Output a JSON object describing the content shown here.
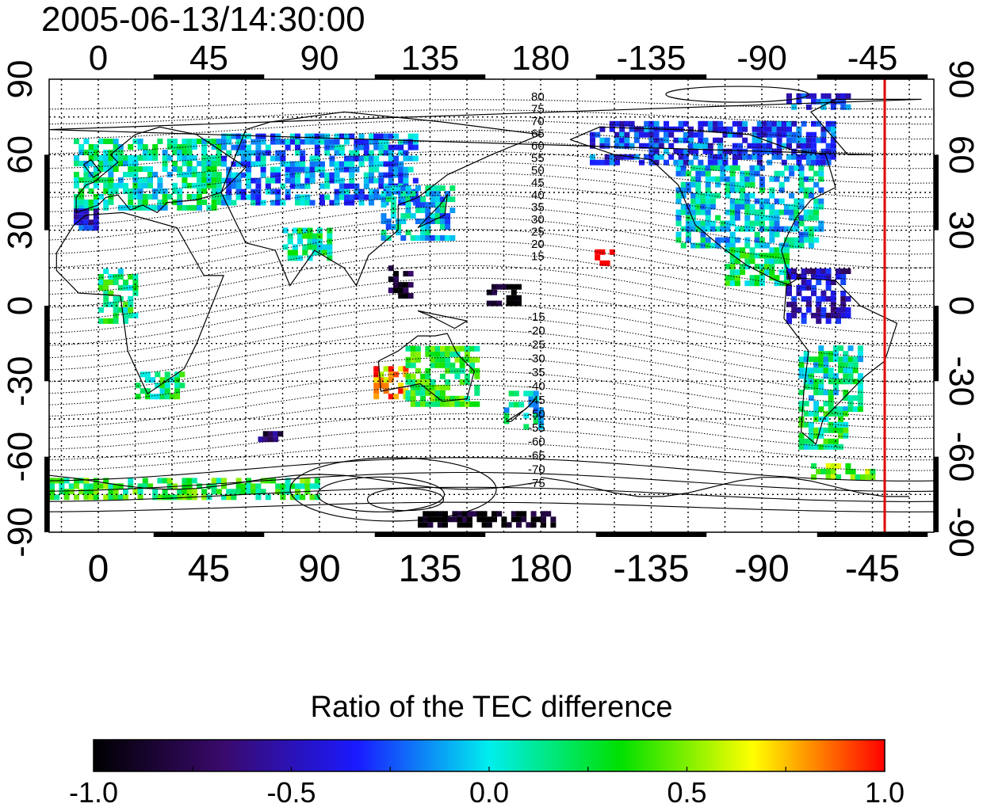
{
  "timestamp": "2005-06-13/14:30:00",
  "map": {
    "lon_tick_labels": [
      "0",
      "45",
      "90",
      "135",
      "180",
      "-135",
      "-90",
      "-45"
    ],
    "lat_tick_labels": [
      "90",
      "60",
      "30",
      "0",
      "-30",
      "-60",
      "-90"
    ],
    "north_contour_labels": [
      "80",
      "75",
      "70",
      "65",
      "60",
      "55",
      "50",
      "45",
      "40",
      "35",
      "30",
      "25",
      "20",
      "15"
    ],
    "south_contour_labels": [
      "-15",
      "-20",
      "-25",
      "-30",
      "-35",
      "-40",
      "-45",
      "-50",
      "-55",
      "-60",
      "-65",
      "-70",
      "-75"
    ],
    "marker_longitude": -40,
    "marker_color": "#e00000"
  },
  "colorbar": {
    "title": "Ratio of the TEC difference",
    "ticks": [
      "-1.0",
      "-0.5",
      "0.0",
      "0.5",
      "1.0"
    ],
    "range": [
      -1.0,
      1.0
    ],
    "colormap": [
      "#000000",
      "#3a0a6e",
      "#1a1aff",
      "#00eeee",
      "#00e000",
      "#ffff00",
      "#ff0000"
    ]
  },
  "data_regions": [
    {
      "name": "europe",
      "lon_min": -10,
      "lon_max": 50,
      "lat_min": 40,
      "lat_max": 68,
      "value": 0.1
    },
    {
      "name": "western-europe-edge",
      "lon_min": -10,
      "lon_max": 0,
      "lat_min": 32,
      "lat_max": 40,
      "value": -0.4
    },
    {
      "name": "northern-asia",
      "lon_min": 50,
      "lon_max": 130,
      "lat_min": 42,
      "lat_max": 70,
      "value": -0.15
    },
    {
      "name": "east-asia",
      "lon_min": 115,
      "lon_max": 145,
      "lat_min": 28,
      "lat_max": 50,
      "value": -0.05
    },
    {
      "name": "south-asia",
      "lon_min": 75,
      "lon_max": 95,
      "lat_min": 20,
      "lat_max": 33,
      "value": 0.15
    },
    {
      "name": "western-africa",
      "lon_min": 0,
      "lon_max": 15,
      "lat_min": -5,
      "lat_max": 15,
      "value": 0.2
    },
    {
      "name": "southern-africa",
      "lon_min": 15,
      "lon_max": 35,
      "lat_min": -35,
      "lat_max": -25,
      "value": 0.2
    },
    {
      "name": "australia-west",
      "lon_min": 112,
      "lon_max": 125,
      "lat_min": -35,
      "lat_max": -22,
      "value": 0.8
    },
    {
      "name": "australia",
      "lon_min": 125,
      "lon_max": 155,
      "lat_min": -38,
      "lat_max": -15,
      "value": 0.3
    },
    {
      "name": "new-zealand",
      "lon_min": 165,
      "lon_max": 180,
      "lat_min": -47,
      "lat_max": -33,
      "value": 0.0
    },
    {
      "name": "north-america",
      "lon_min": -125,
      "lon_max": -65,
      "lat_min": 25,
      "lat_max": 58,
      "value": 0.0
    },
    {
      "name": "canada-north",
      "lon_min": -160,
      "lon_max": -60,
      "lat_min": 58,
      "lat_max": 75,
      "value": -0.3
    },
    {
      "name": "central-america",
      "lon_min": -105,
      "lon_max": -80,
      "lat_min": 10,
      "lat_max": 25,
      "value": 0.2
    },
    {
      "name": "caribbean",
      "lon_min": -80,
      "lon_max": -55,
      "lat_min": -5,
      "lat_max": 15,
      "value": -0.5
    },
    {
      "name": "south-america",
      "lon_min": -75,
      "lon_max": -50,
      "lat_min": -40,
      "lat_max": -15,
      "value": 0.1
    },
    {
      "name": "patagonia",
      "lon_min": -75,
      "lon_max": -55,
      "lat_min": -55,
      "lat_max": -40,
      "value": 0.2
    },
    {
      "name": "antarctic-coast",
      "lon_min": -20,
      "lon_max": 90,
      "lat_min": -75,
      "lat_max": -68,
      "value": 0.3
    },
    {
      "name": "antarctic-peninsula",
      "lon_min": -70,
      "lon_max": -45,
      "lat_min": -67,
      "lat_max": -62,
      "value": 0.4
    },
    {
      "name": "hawaii",
      "lon_min": -158,
      "lon_max": -150,
      "lat_min": 18,
      "lat_max": 24,
      "value": 0.95
    },
    {
      "name": "philippines",
      "lon_min": 118,
      "lon_max": 128,
      "lat_min": 5,
      "lat_max": 18,
      "value": -0.9
    },
    {
      "name": "micronesia",
      "lon_min": 158,
      "lon_max": 172,
      "lat_min": 2,
      "lat_max": 10,
      "value": -0.95
    },
    {
      "name": "antarctic-interior",
      "lon_min": 130,
      "lon_max": 185,
      "lat_min": -86,
      "lat_max": -80,
      "value": -1.0
    },
    {
      "name": "arctic-north",
      "lon_min": -80,
      "lon_max": -55,
      "lat_min": 80,
      "lat_max": 86,
      "value": -0.3
    },
    {
      "name": "southern-indian-ocean",
      "lon_min": 65,
      "lon_max": 75,
      "lat_min": -52,
      "lat_max": -48,
      "value": -0.75
    }
  ]
}
